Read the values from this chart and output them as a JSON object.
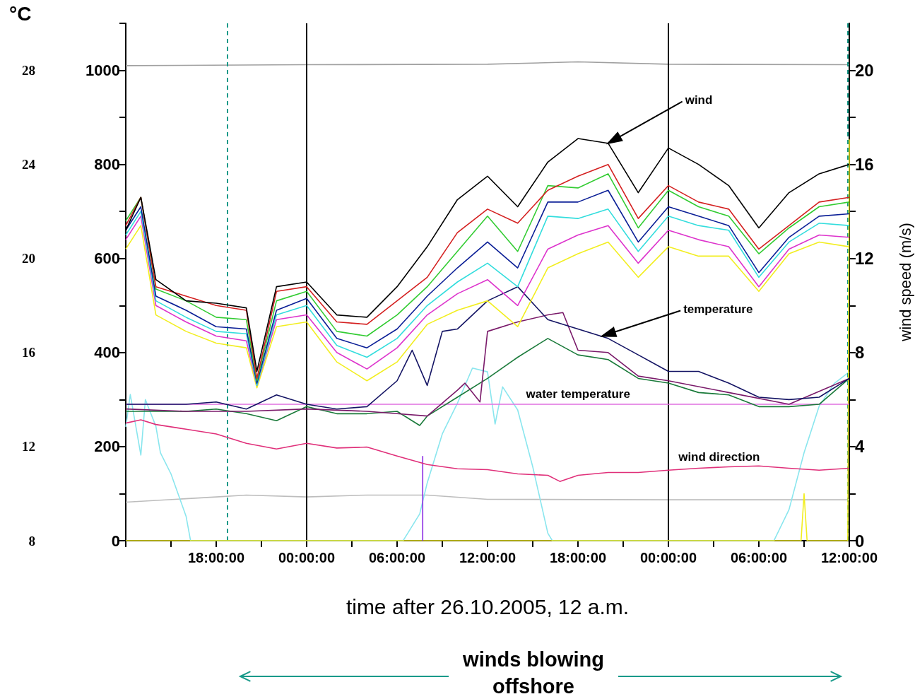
{
  "chart_data": {
    "type": "line",
    "xlabel": "time after 26.10.2005, 12 a.m.",
    "y2label": "wind speed (m/s)",
    "y3label": "°C",
    "xlim": [
      "2005-10-26T12:00",
      "2005-10-28T12:00"
    ],
    "xticks": [
      {
        "value": "2005-10-26T12:00",
        "label": null
      },
      {
        "value": "2005-10-26T15:00",
        "label": null
      },
      {
        "value": "2005-10-26T18:00",
        "label": "18:00:00"
      },
      {
        "value": "2005-10-26T21:00",
        "label": null
      },
      {
        "value": "2005-10-27T00:00",
        "label": "00:00:00"
      },
      {
        "value": "2005-10-27T03:00",
        "label": null
      },
      {
        "value": "2005-10-27T06:00",
        "label": "06:00:00"
      },
      {
        "value": "2005-10-27T09:00",
        "label": null
      },
      {
        "value": "2005-10-27T12:00",
        "label": "12:00:00"
      },
      {
        "value": "2005-10-27T15:00",
        "label": null
      },
      {
        "value": "2005-10-27T18:00",
        "label": "18:00:00"
      },
      {
        "value": "2005-10-27T21:00",
        "label": null
      },
      {
        "value": "2005-10-28T00:00",
        "label": "00:00:00"
      },
      {
        "value": "2005-10-28T03:00",
        "label": null
      },
      {
        "value": "2005-10-28T06:00",
        "label": "06:00:00"
      },
      {
        "value": "2005-10-28T09:00",
        "label": null
      },
      {
        "value": "2005-10-28T12:00",
        "label": "12:00:00"
      }
    ],
    "ylim": [
      0,
      1100
    ],
    "yticks": [
      0,
      {
        "value": 100,
        "label": null
      },
      200,
      {
        "value": 300,
        "label": null
      },
      400,
      {
        "value": 500,
        "label": null
      },
      600,
      {
        "value": 700,
        "label": null
      },
      800,
      {
        "value": 900,
        "label": null
      },
      1000,
      {
        "value": 1100,
        "label": null
      }
    ],
    "y2lim": [
      0,
      22
    ],
    "y2ticks": [
      0,
      {
        "value": 2,
        "label": null
      },
      4,
      {
        "value": 6,
        "label": null
      },
      8,
      {
        "value": 10,
        "label": null
      },
      12,
      {
        "value": 14,
        "label": null
      },
      16,
      {
        "value": 18,
        "label": null
      },
      20
    ],
    "y3lim": [
      8,
      30
    ],
    "y3ticks": [
      8,
      12,
      16,
      20,
      24,
      28
    ],
    "series": [
      {
        "axis": "y",
        "color": "#a0a0a0",
        "x": [
          "2005-10-26T12:00",
          "2005-10-27T00:00",
          "2005-10-27T12:00",
          "2005-10-27T18:00",
          "2005-10-28T00:00",
          "2005-10-28T12:00"
        ],
        "values": [
          1010,
          1012,
          1013,
          1018,
          1013,
          1012
        ]
      },
      {
        "axis": "y",
        "color": "#bdbdbd",
        "x": [
          "2005-10-26T12:00",
          "2005-10-26T18:00",
          "2005-10-26T20:00",
          "2005-10-27T00:00",
          "2005-10-27T04:00",
          "2005-10-27T08:00",
          "2005-10-27T12:00",
          "2005-10-28T00:00",
          "2005-10-28T12:00"
        ],
        "values": [
          82,
          93,
          97,
          93,
          97,
          97,
          88,
          87,
          87
        ]
      },
      {
        "axis": "y",
        "color": "#8ae6ee",
        "x": [
          "2005-10-26T12:00",
          "2005-10-26T12:18",
          "2005-10-26T13:00",
          "2005-10-26T13:18",
          "2005-10-26T14:00",
          "2005-10-26T14:18",
          "2005-10-26T15:00",
          "2005-10-26T16:00",
          "2005-10-26T16:18",
          "2005-10-27T06:24",
          "2005-10-27T07:30",
          "2005-10-27T08:00",
          "2005-10-27T09:00",
          "2005-10-27T10:00",
          "2005-10-27T11:00",
          "2005-10-27T12:00",
          "2005-10-27T12:30",
          "2005-10-27T13:00",
          "2005-10-27T14:00",
          "2005-10-27T15:00",
          "2005-10-27T16:00",
          "2005-10-27T16:18",
          "2005-10-28T07:00",
          "2005-10-28T08:00",
          "2005-10-28T09:00",
          "2005-10-28T10:00",
          "2005-10-28T11:00",
          "2005-10-28T12:00"
        ],
        "values": [
          242,
          311,
          182,
          300,
          243,
          187,
          142,
          52,
          0,
          0,
          57,
          123,
          227,
          292,
          367,
          359,
          248,
          327,
          278,
          157,
          16,
          0,
          0,
          66,
          187,
          286,
          334,
          359
        ]
      },
      {
        "axis": "y",
        "color": "#f2ee20",
        "x": [
          "2005-10-26T12:00",
          "2005-10-28T08:48",
          "2005-10-28T09:00",
          "2005-10-28T09:12",
          "2005-10-28T11:54",
          "2005-10-28T12:00"
        ],
        "values": [
          0,
          0,
          100,
          0,
          0,
          853
        ]
      },
      {
        "axis": "y",
        "color": "#8a2be2",
        "x": [
          "2005-10-27T07:42",
          "2005-10-27T07:42"
        ],
        "values": [
          0,
          180
        ]
      },
      {
        "axis": "y",
        "name": "wind direction",
        "color": "#e0307a",
        "x": [
          "2005-10-26T12:00",
          "2005-10-26T13:00",
          "2005-10-26T14:00",
          "2005-10-26T16:00",
          "2005-10-26T18:00",
          "2005-10-26T20:00",
          "2005-10-26T22:00",
          "2005-10-27T00:00",
          "2005-10-27T02:00",
          "2005-10-27T04:00",
          "2005-10-27T06:00",
          "2005-10-27T08:00",
          "2005-10-27T10:00",
          "2005-10-27T12:00",
          "2005-10-27T14:00",
          "2005-10-27T16:00",
          "2005-10-27T16:48",
          "2005-10-27T18:00",
          "2005-10-27T20:00",
          "2005-10-27T22:00",
          "2005-10-28T00:00",
          "2005-10-28T02:00",
          "2005-10-28T04:00",
          "2005-10-28T06:00",
          "2005-10-28T08:00",
          "2005-10-28T10:00",
          "2005-10-28T12:00"
        ],
        "values": [
          250,
          257,
          247,
          237,
          227,
          207,
          195,
          207,
          197,
          199,
          180,
          162,
          153,
          151,
          142,
          139,
          126,
          139,
          145,
          145,
          150,
          154,
          157,
          159,
          154,
          150,
          154
        ]
      },
      {
        "axis": "y3",
        "name": "water temperature",
        "color": "#e070e0",
        "x": [
          "2005-10-26T12:00",
          "2005-10-28T12:00"
        ],
        "values": [
          13.8,
          13.8
        ]
      },
      {
        "axis": "y3",
        "color": "#1a7a3a",
        "x": [
          "2005-10-26T12:00",
          "2005-10-26T14:00",
          "2005-10-26T16:00",
          "2005-10-26T18:00",
          "2005-10-26T20:00",
          "2005-10-26T22:00",
          "2005-10-27T00:00",
          "2005-10-27T02:00",
          "2005-10-27T04:00",
          "2005-10-27T06:00",
          "2005-10-27T07:30",
          "2005-10-27T08:00",
          "2005-10-27T10:00",
          "2005-10-27T12:00",
          "2005-10-27T14:00",
          "2005-10-27T16:00",
          "2005-10-27T18:00",
          "2005-10-27T20:00",
          "2005-10-27T22:00",
          "2005-10-28T00:00",
          "2005-10-28T02:00",
          "2005-10-28T04:00",
          "2005-10-28T06:00",
          "2005-10-28T08:00",
          "2005-10-28T10:00",
          "2005-10-28T12:00"
        ],
        "values": [
          13.5,
          13.5,
          13.5,
          13.6,
          13.4,
          13.1,
          13.7,
          13.4,
          13.4,
          13.5,
          12.9,
          13.3,
          14.1,
          14.9,
          15.8,
          16.6,
          15.9,
          15.7,
          14.9,
          14.7,
          14.3,
          14.2,
          13.7,
          13.7,
          13.8,
          14.9
        ]
      },
      {
        "axis": "y3",
        "color": "#7a1a6a",
        "x": [
          "2005-10-26T12:00",
          "2005-10-26T16:00",
          "2005-10-26T20:00",
          "2005-10-27T00:00",
          "2005-10-27T04:00",
          "2005-10-27T06:00",
          "2005-10-27T08:00",
          "2005-10-27T10:00",
          "2005-10-27T10:30",
          "2005-10-27T11:30",
          "2005-10-27T12:00",
          "2005-10-27T14:00",
          "2005-10-27T16:00",
          "2005-10-27T17:00",
          "2005-10-27T18:00",
          "2005-10-27T20:00",
          "2005-10-27T22:00",
          "2005-10-28T00:00",
          "2005-10-28T04:00",
          "2005-10-28T08:00",
          "2005-10-28T12:00"
        ],
        "values": [
          13.6,
          13.5,
          13.5,
          13.6,
          13.5,
          13.4,
          13.3,
          14.4,
          14.7,
          13.9,
          16.9,
          17.3,
          17.6,
          17.7,
          16.1,
          16.0,
          15.0,
          14.8,
          14.3,
          13.8,
          14.9
        ]
      },
      {
        "axis": "y3",
        "color": "#141464",
        "x": [
          "2005-10-26T12:00",
          "2005-10-26T14:00",
          "2005-10-26T16:00",
          "2005-10-26T18:00",
          "2005-10-26T20:00",
          "2005-10-26T22:00",
          "2005-10-27T00:00",
          "2005-10-27T02:00",
          "2005-10-27T04:00",
          "2005-10-27T06:00",
          "2005-10-27T07:00",
          "2005-10-27T08:00",
          "2005-10-27T09:00",
          "2005-10-27T10:00",
          "2005-10-27T12:00",
          "2005-10-27T14:00",
          "2005-10-27T16:00",
          "2005-10-27T18:00",
          "2005-10-27T20:00",
          "2005-10-27T22:00",
          "2005-10-28T00:00",
          "2005-10-28T02:00",
          "2005-10-28T04:00",
          "2005-10-28T06:00",
          "2005-10-28T08:00",
          "2005-10-28T10:00",
          "2005-10-28T12:00"
        ],
        "values": [
          13.8,
          13.8,
          13.8,
          13.9,
          13.6,
          14.2,
          13.8,
          13.6,
          13.7,
          14.8,
          16.1,
          14.6,
          16.9,
          17.0,
          18.2,
          18.8,
          17.4,
          17.0,
          16.6,
          15.9,
          15.2,
          15.2,
          14.7,
          14.1,
          14.0,
          14.1,
          14.9
        ]
      },
      {
        "axis": "y2",
        "color": "#f2ee20",
        "x": [
          "2005-10-26T12:00",
          "2005-10-26T13:00",
          "2005-10-26T14:00",
          "2005-10-26T16:00",
          "2005-10-26T18:00",
          "2005-10-26T20:00",
          "2005-10-26T20:42",
          "2005-10-26T22:00",
          "2005-10-27T00:00",
          "2005-10-27T02:00",
          "2005-10-27T04:00",
          "2005-10-27T06:00",
          "2005-10-27T08:00",
          "2005-10-27T10:00",
          "2005-10-27T12:00",
          "2005-10-27T14:00",
          "2005-10-27T16:00",
          "2005-10-27T18:00",
          "2005-10-27T20:00",
          "2005-10-27T22:00",
          "2005-10-28T00:00",
          "2005-10-28T02:00",
          "2005-10-28T04:00",
          "2005-10-28T06:00",
          "2005-10-28T08:00",
          "2005-10-28T10:00",
          "2005-10-28T12:00"
        ],
        "values": [
          12.4,
          13.4,
          9.6,
          8.9,
          8.4,
          8.2,
          6.5,
          9.1,
          9.3,
          7.6,
          6.8,
          7.6,
          9.2,
          9.8,
          10.2,
          9.1,
          11.6,
          12.2,
          12.7,
          11.2,
          12.5,
          12.1,
          12.1,
          10.6,
          12.2,
          12.7,
          12.5
        ]
      },
      {
        "axis": "y2",
        "color": "#dd33cc",
        "x": [
          "2005-10-26T12:00",
          "2005-10-26T13:00",
          "2005-10-26T14:00",
          "2005-10-26T16:00",
          "2005-10-26T18:00",
          "2005-10-26T20:00",
          "2005-10-26T20:42",
          "2005-10-26T22:00",
          "2005-10-27T00:00",
          "2005-10-27T02:00",
          "2005-10-27T04:00",
          "2005-10-27T06:00",
          "2005-10-27T08:00",
          "2005-10-27T10:00",
          "2005-10-27T12:00",
          "2005-10-27T14:00",
          "2005-10-27T16:00",
          "2005-10-27T18:00",
          "2005-10-27T20:00",
          "2005-10-27T22:00",
          "2005-10-28T00:00",
          "2005-10-28T02:00",
          "2005-10-28T04:00",
          "2005-10-28T06:00",
          "2005-10-28T08:00",
          "2005-10-28T10:00",
          "2005-10-28T12:00"
        ],
        "values": [
          12.8,
          13.8,
          10.0,
          9.3,
          8.7,
          8.5,
          6.6,
          9.4,
          9.6,
          8.0,
          7.3,
          8.2,
          9.6,
          10.5,
          11.1,
          10.0,
          12.4,
          13.0,
          13.4,
          11.8,
          13.2,
          12.8,
          12.5,
          10.8,
          12.4,
          13.0,
          12.9
        ]
      },
      {
        "axis": "y2",
        "color": "#33dddd",
        "x": [
          "2005-10-26T12:00",
          "2005-10-26T13:00",
          "2005-10-26T14:00",
          "2005-10-26T16:00",
          "2005-10-26T18:00",
          "2005-10-26T20:00",
          "2005-10-26T20:42",
          "2005-10-26T22:00",
          "2005-10-27T00:00",
          "2005-10-27T02:00",
          "2005-10-27T04:00",
          "2005-10-27T06:00",
          "2005-10-27T08:00",
          "2005-10-27T10:00",
          "2005-10-27T12:00",
          "2005-10-27T14:00",
          "2005-10-27T16:00",
          "2005-10-27T18:00",
          "2005-10-27T20:00",
          "2005-10-27T22:00",
          "2005-10-28T00:00",
          "2005-10-28T02:00",
          "2005-10-28T04:00",
          "2005-10-28T06:00",
          "2005-10-28T08:00",
          "2005-10-28T10:00",
          "2005-10-28T12:00"
        ],
        "values": [
          13.0,
          14.0,
          10.2,
          9.5,
          8.9,
          8.8,
          6.6,
          9.6,
          10.0,
          8.3,
          7.8,
          8.6,
          10.0,
          11.0,
          11.8,
          10.8,
          13.8,
          13.7,
          14.1,
          12.3,
          13.8,
          13.4,
          13.2,
          11.2,
          12.7,
          13.5,
          13.4
        ]
      },
      {
        "axis": "y2",
        "color": "#0a1e96",
        "x": [
          "2005-10-26T12:00",
          "2005-10-26T13:00",
          "2005-10-26T14:00",
          "2005-10-26T16:00",
          "2005-10-26T18:00",
          "2005-10-26T20:00",
          "2005-10-26T20:42",
          "2005-10-26T22:00",
          "2005-10-27T00:00",
          "2005-10-27T02:00",
          "2005-10-27T04:00",
          "2005-10-27T06:00",
          "2005-10-27T08:00",
          "2005-10-27T10:00",
          "2005-10-27T12:00",
          "2005-10-27T14:00",
          "2005-10-27T16:00",
          "2005-10-27T18:00",
          "2005-10-27T20:00",
          "2005-10-27T22:00",
          "2005-10-28T00:00",
          "2005-10-28T02:00",
          "2005-10-28T04:00",
          "2005-10-28T06:00",
          "2005-10-28T08:00",
          "2005-10-28T10:00",
          "2005-10-28T12:00"
        ],
        "values": [
          13.2,
          14.2,
          10.4,
          9.8,
          9.1,
          9.0,
          6.7,
          9.8,
          10.3,
          8.6,
          8.2,
          9.0,
          10.4,
          11.6,
          12.7,
          11.6,
          14.4,
          14.4,
          14.9,
          12.7,
          14.2,
          13.8,
          13.4,
          11.4,
          12.9,
          13.8,
          13.9
        ]
      },
      {
        "axis": "y2",
        "color": "#33cc33",
        "x": [
          "2005-10-26T12:00",
          "2005-10-26T13:00",
          "2005-10-26T14:00",
          "2005-10-26T16:00",
          "2005-10-26T18:00",
          "2005-10-26T20:00",
          "2005-10-26T20:42",
          "2005-10-26T22:00",
          "2005-10-27T00:00",
          "2005-10-27T02:00",
          "2005-10-27T04:00",
          "2005-10-27T06:00",
          "2005-10-27T08:00",
          "2005-10-27T10:00",
          "2005-10-27T12:00",
          "2005-10-27T14:00",
          "2005-10-27T16:00",
          "2005-10-27T18:00",
          "2005-10-27T20:00",
          "2005-10-27T22:00",
          "2005-10-28T00:00",
          "2005-10-28T02:00",
          "2005-10-28T04:00",
          "2005-10-28T06:00",
          "2005-10-28T08:00",
          "2005-10-28T10:00",
          "2005-10-28T12:00"
        ],
        "values": [
          13.6,
          14.6,
          10.7,
          10.2,
          9.5,
          9.4,
          6.8,
          10.2,
          10.6,
          8.9,
          8.7,
          9.6,
          10.8,
          12.3,
          13.8,
          12.3,
          15.1,
          15.0,
          15.6,
          13.3,
          14.9,
          14.2,
          13.8,
          12.2,
          13.3,
          14.2,
          14.4
        ]
      },
      {
        "axis": "y2",
        "color": "#d42020",
        "x": [
          "2005-10-26T12:00",
          "2005-10-26T13:00",
          "2005-10-26T14:00",
          "2005-10-26T16:00",
          "2005-10-26T18:00",
          "2005-10-26T20:00",
          "2005-10-26T20:42",
          "2005-10-26T22:00",
          "2005-10-27T00:00",
          "2005-10-27T02:00",
          "2005-10-27T04:00",
          "2005-10-27T06:00",
          "2005-10-27T08:00",
          "2005-10-27T10:00",
          "2005-10-27T12:00",
          "2005-10-27T14:00",
          "2005-10-27T16:00",
          "2005-10-27T18:00",
          "2005-10-27T20:00",
          "2005-10-27T22:00",
          "2005-10-28T00:00",
          "2005-10-28T02:00",
          "2005-10-28T04:00",
          "2005-10-28T06:00",
          "2005-10-28T08:00",
          "2005-10-28T10:00",
          "2005-10-28T12:00"
        ],
        "values": [
          13.4,
          14.6,
          10.8,
          10.4,
          10.0,
          9.8,
          6.9,
          10.6,
          10.8,
          9.3,
          9.2,
          10.2,
          11.2,
          13.1,
          14.1,
          13.5,
          14.9,
          15.5,
          16.0,
          13.7,
          15.1,
          14.4,
          14.1,
          12.4,
          13.4,
          14.4,
          14.6
        ]
      },
      {
        "axis": "y2",
        "color": "#000000",
        "x": [
          "2005-10-26T12:00",
          "2005-10-26T13:00",
          "2005-10-26T14:00",
          "2005-10-26T16:00",
          "2005-10-26T18:00",
          "2005-10-26T20:00",
          "2005-10-26T20:42",
          "2005-10-26T22:00",
          "2005-10-27T00:00",
          "2005-10-27T02:00",
          "2005-10-27T04:00",
          "2005-10-27T06:00",
          "2005-10-27T08:00",
          "2005-10-27T10:00",
          "2005-10-27T12:00",
          "2005-10-27T14:00",
          "2005-10-27T16:00",
          "2005-10-27T18:00",
          "2005-10-27T20:00",
          "2005-10-27T22:00",
          "2005-10-28T00:00",
          "2005-10-28T02:00",
          "2005-10-28T04:00",
          "2005-10-28T06:00",
          "2005-10-28T08:00",
          "2005-10-28T10:00",
          "2005-10-28T12:00"
        ],
        "values": [
          13.2,
          14.6,
          11.1,
          10.2,
          10.1,
          9.9,
          7.2,
          10.8,
          11.0,
          9.6,
          9.5,
          10.8,
          12.5,
          14.5,
          15.5,
          14.2,
          16.1,
          17.1,
          16.9,
          14.8,
          16.7,
          16.0,
          15.1,
          13.3,
          14.8,
          15.6,
          16.0
        ]
      }
    ],
    "ref_lines": [
      {
        "axis": "x",
        "value": "2005-10-27T00:00",
        "color": "#000000"
      },
      {
        "axis": "x",
        "value": "2005-10-28T00:00",
        "color": "#000000"
      },
      {
        "axis": "x",
        "value": "2005-10-26T18:45",
        "color": "#199a8a",
        "line_style": "dashed"
      },
      {
        "axis": "x",
        "value": "2005-10-28T11:54",
        "color": "#199a8a",
        "line_style": "dashed"
      }
    ],
    "annotations": [
      {
        "text": "wind",
        "x": "2005-10-27T20:00",
        "y": 845
      },
      {
        "text": "temperature",
        "x": "2005-10-27T19:36",
        "y": 435
      },
      "winds blowing offshore"
    ]
  }
}
